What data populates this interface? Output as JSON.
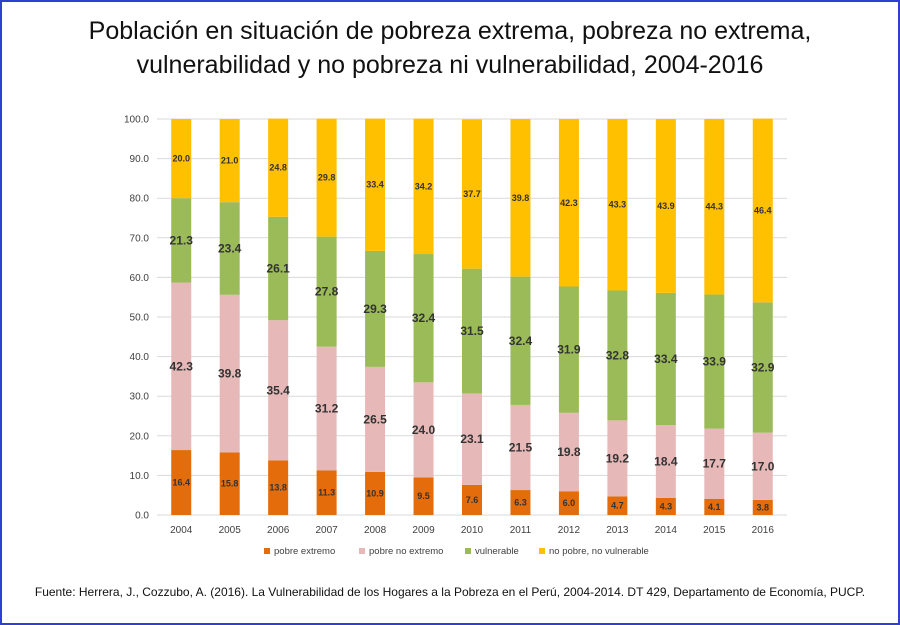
{
  "title_line1": "Población en situación de pobreza extrema, pobreza no extrema,",
  "title_line2": "vulnerabilidad y no pobreza ni vulnerabilidad, 2004-2016",
  "source": "Fuente: Herrera, J., Cozzubo, A. (2016). La Vulnerabilidad de los Hogares a la Pobreza en el Perú, 2004-2014. DT 429, Departamento de Economía, PUCP.",
  "chart_data": {
    "type": "bar",
    "stacked": true,
    "title": "Población en situación de pobreza extrema, pobreza no extrema, vulnerabilidad y no pobreza ni vulnerabilidad, 2004-2016",
    "xlabel": "",
    "ylabel": "",
    "ylim": [
      0,
      100
    ],
    "yticks": [
      "0.0",
      "10.0",
      "20.0",
      "30.0",
      "40.0",
      "50.0",
      "60.0",
      "70.0",
      "80.0",
      "90.0",
      "100.0"
    ],
    "grid": true,
    "legend_position": "bottom",
    "categories": [
      "2004",
      "2005",
      "2006",
      "2007",
      "2008",
      "2009",
      "2010",
      "2011",
      "2012",
      "2013",
      "2014",
      "2015",
      "2016"
    ],
    "series": [
      {
        "name": "pobre extremo",
        "color": "#e46c0a",
        "label_size": "small",
        "values": [
          16.4,
          15.8,
          13.8,
          11.3,
          10.9,
          9.5,
          7.6,
          6.3,
          6.0,
          4.7,
          4.3,
          4.1,
          3.8
        ],
        "labels": [
          "16.4",
          "15.8",
          "13.8",
          "11.3",
          "10.9",
          "9.5",
          "7.6",
          "6.3",
          "6.0",
          "4.7",
          "4.3",
          "4.1",
          "3.8"
        ]
      },
      {
        "name": "pobre no extremo",
        "color": "#e6b9b8",
        "label_size": "large",
        "values": [
          42.3,
          39.8,
          35.4,
          31.2,
          26.5,
          24.0,
          23.1,
          21.5,
          19.8,
          19.2,
          18.4,
          17.7,
          17.0
        ],
        "labels": [
          "42.3",
          "39.8",
          "35.4",
          "31.2",
          "26.5",
          "24.0",
          "23.1",
          "21.5",
          "19.8",
          "19.2",
          "18.4",
          "17.7",
          "17.0"
        ]
      },
      {
        "name": "vulnerable",
        "color": "#9bbb59",
        "label_size": "large",
        "values": [
          21.3,
          23.4,
          26.1,
          27.8,
          29.3,
          32.4,
          31.5,
          32.4,
          31.9,
          32.8,
          33.4,
          33.9,
          32.9
        ],
        "labels": [
          "21.3",
          "23.4",
          "26.1",
          "27.8",
          "29.3",
          "32.4",
          "31.5",
          "32.4",
          "31.9",
          "32.8",
          "33.4",
          "33.9",
          "32.9"
        ]
      },
      {
        "name": "no pobre, no vulnerable",
        "color": "#ffc000",
        "label_size": "small",
        "values": [
          20.0,
          21.0,
          24.8,
          29.8,
          33.4,
          34.2,
          37.7,
          39.8,
          42.3,
          43.3,
          43.9,
          44.3,
          46.4
        ],
        "labels": [
          "20.0",
          "21.0",
          "24.8",
          "29.8",
          "33.4",
          "34.2",
          "37.7",
          "39.8",
          "42.3",
          "43.3",
          "43.9",
          "44.3",
          "46.4"
        ]
      }
    ]
  }
}
